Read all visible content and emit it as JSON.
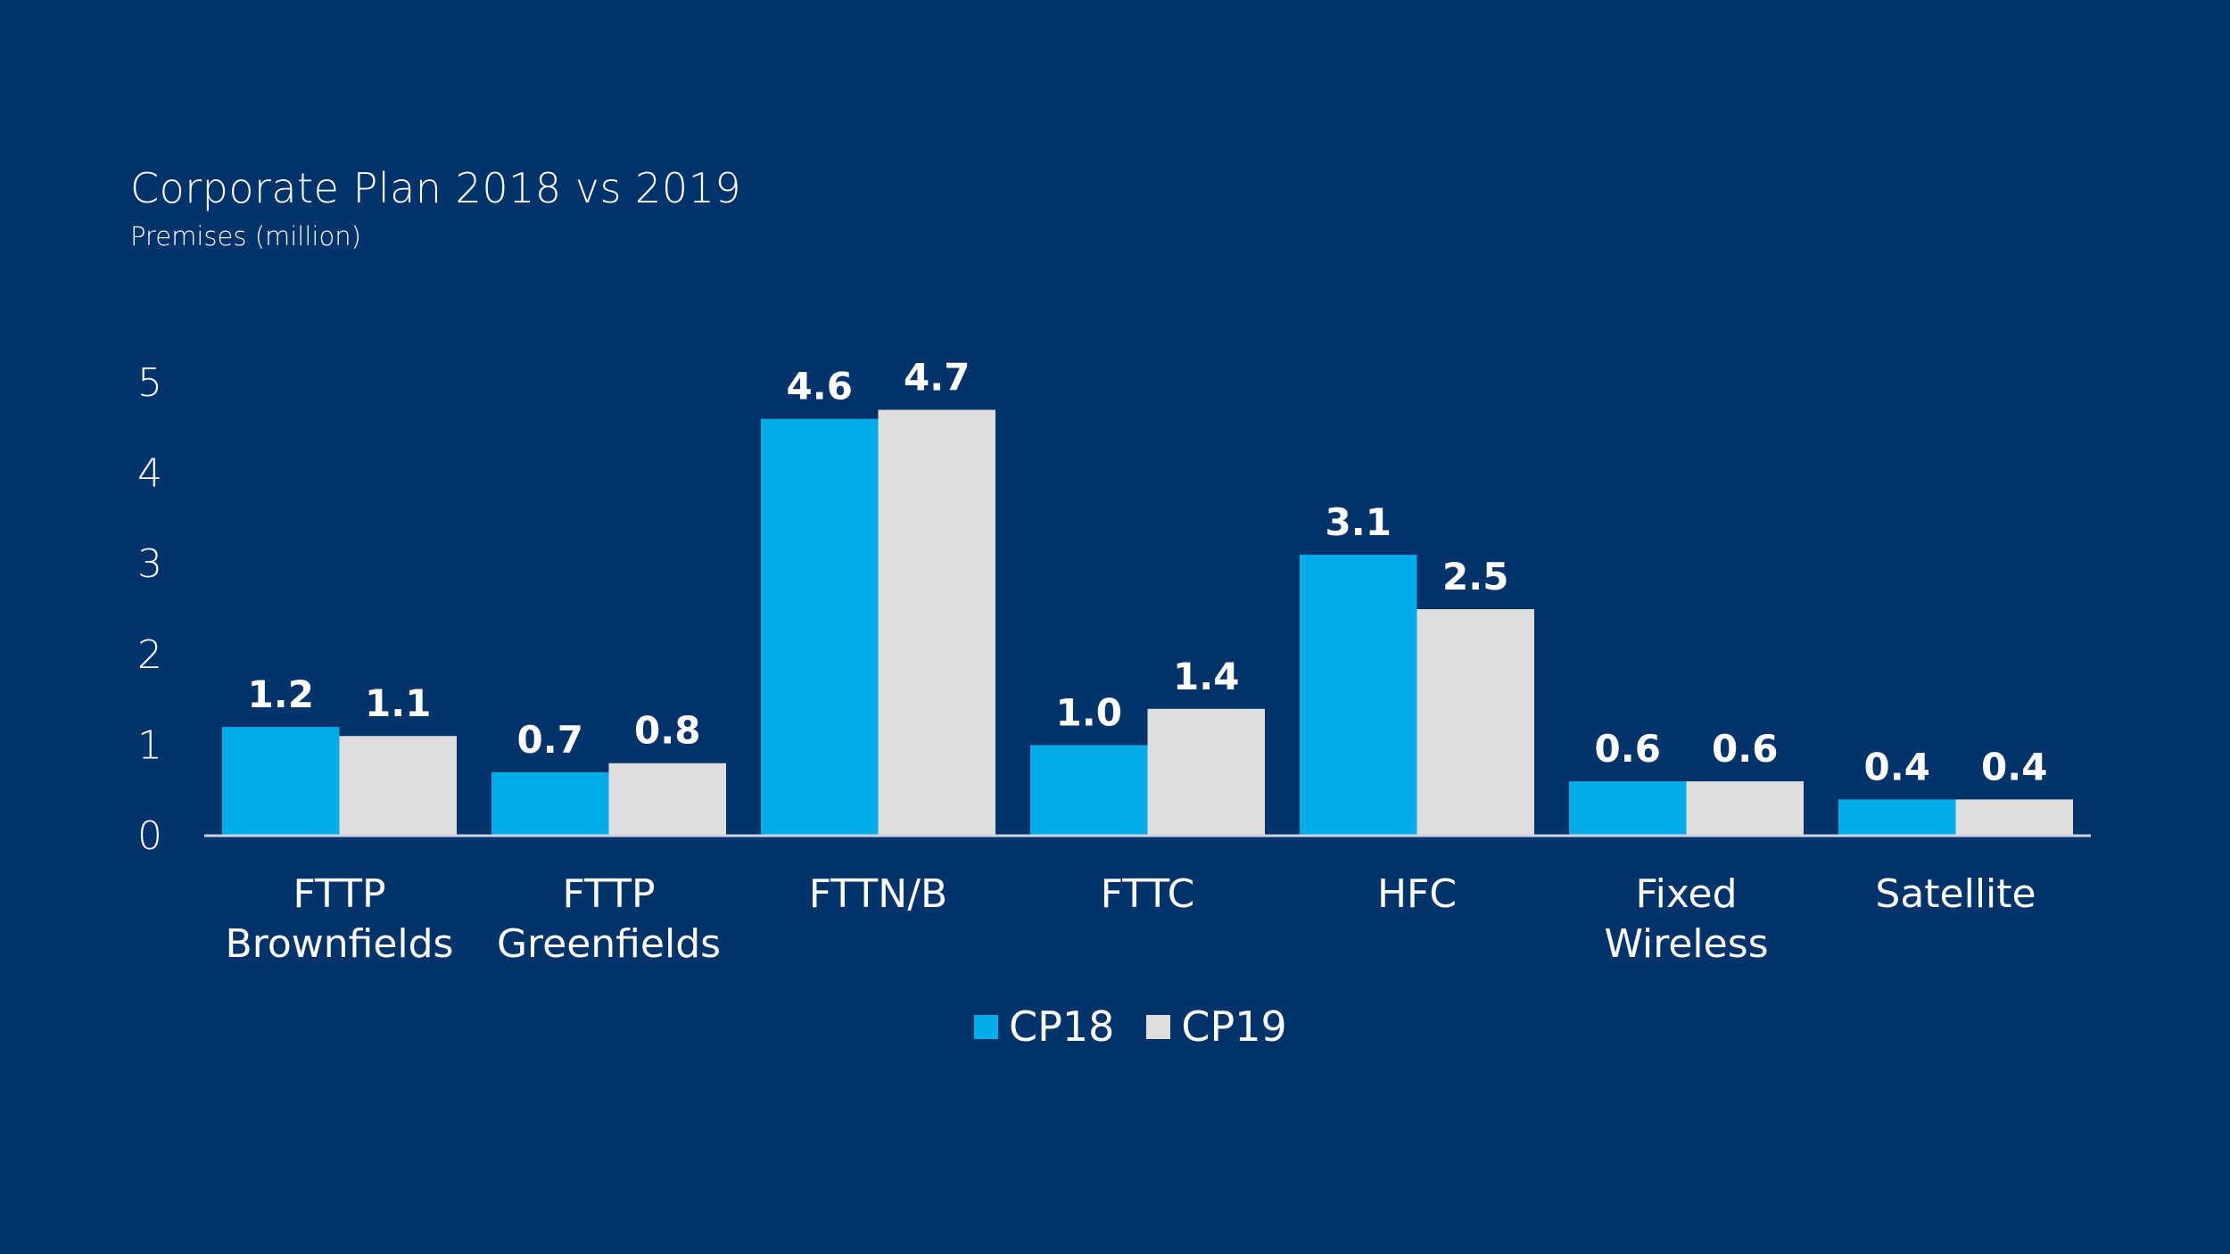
{
  "header": {
    "title": "Corporate Plan 2018 vs 2019",
    "subtitle": "Premises (million)"
  },
  "colors": {
    "background": "#02336a",
    "cp18": "#00ade8",
    "cp19": "#dedede",
    "axis": "#c9d3e3"
  },
  "legend": {
    "items": [
      {
        "label": "CP18",
        "color": "#00ade8"
      },
      {
        "label": "CP19",
        "color": "#dedede"
      }
    ],
    "position": "bottom-center"
  },
  "chart_data": {
    "type": "bar",
    "title": "Corporate Plan 2018 vs 2019",
    "subtitle": "Premises (million)",
    "xlabel": "",
    "ylabel": "Premises (million)",
    "ylim": [
      0,
      5
    ],
    "yticks": [
      0,
      1,
      2,
      3,
      4,
      5
    ],
    "grid": false,
    "legend_position": "bottom-center",
    "categories": [
      [
        "FTTP",
        "Brownfields"
      ],
      [
        "FTTP",
        "Greenfields"
      ],
      [
        "FTTN/B"
      ],
      [
        "FTTC"
      ],
      [
        "HFC"
      ],
      [
        "Fixed",
        "Wireless"
      ],
      [
        "Satellite"
      ]
    ],
    "series": [
      {
        "name": "CP18",
        "color": "#00ade8",
        "values": [
          1.2,
          0.7,
          4.6,
          1.0,
          3.1,
          0.6,
          0.4
        ],
        "labels": [
          "1.2",
          "0.7",
          "4.6",
          "1.0",
          "3.1",
          "0.6",
          "0.4"
        ]
      },
      {
        "name": "CP19",
        "color": "#dedede",
        "values": [
          1.1,
          0.8,
          4.7,
          1.4,
          2.5,
          0.6,
          0.4
        ],
        "labels": [
          "1.1",
          "0.8",
          "4.7",
          "1.4",
          "2.5",
          "0.6",
          "0.4"
        ]
      }
    ]
  }
}
